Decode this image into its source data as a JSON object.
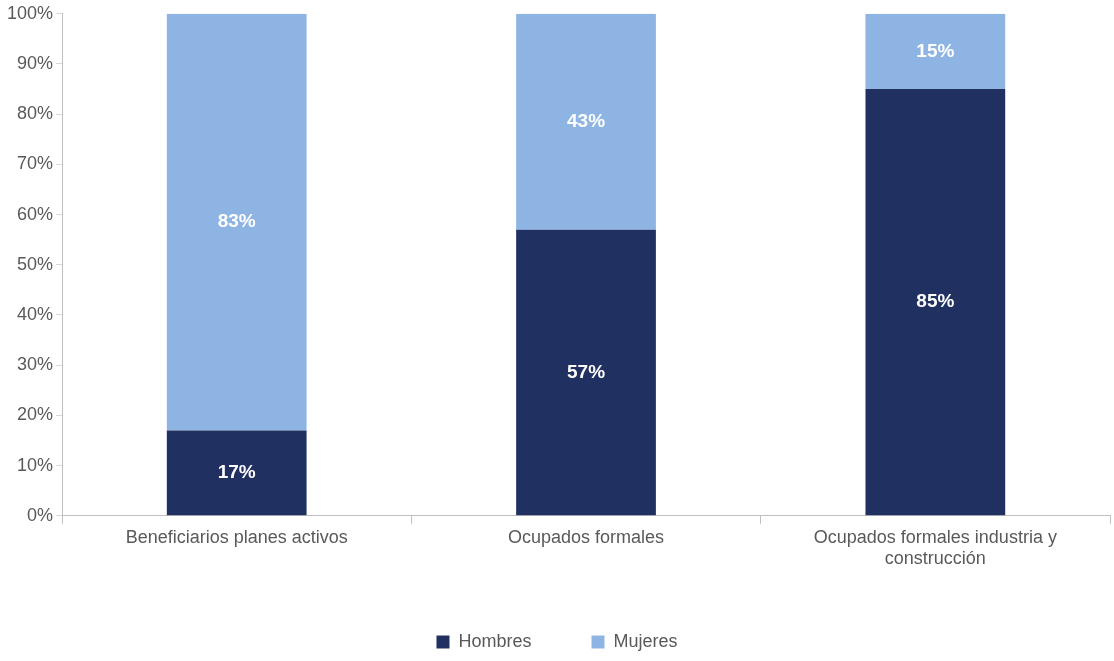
{
  "chart_data": {
    "type": "bar",
    "stacked": true,
    "categories": [
      "Beneficiarios planes activos",
      "Ocupados formales",
      "Ocupados formales industria y construcción"
    ],
    "series": [
      {
        "name": "Hombres",
        "color": "#1f3061",
        "values": [
          17,
          57,
          85
        ],
        "value_labels": [
          "17%",
          "57%",
          "85%"
        ]
      },
      {
        "name": "Mujeres",
        "color": "#8eb4e3",
        "values": [
          83,
          43,
          15
        ],
        "value_labels": [
          "83%",
          "43%",
          "15%"
        ]
      }
    ],
    "ylim": [
      0,
      100
    ],
    "yticks": [
      {
        "value": 0,
        "label": "0%"
      },
      {
        "value": 10,
        "label": "10%"
      },
      {
        "value": 20,
        "label": "20%"
      },
      {
        "value": 30,
        "label": "30%"
      },
      {
        "value": 40,
        "label": "40%"
      },
      {
        "value": 50,
        "label": "50%"
      },
      {
        "value": 60,
        "label": "60%"
      },
      {
        "value": 70,
        "label": "70%"
      },
      {
        "value": 80,
        "label": "80%"
      },
      {
        "value": 90,
        "label": "90%"
      },
      {
        "value": 100,
        "label": "100%"
      }
    ],
    "grid": false,
    "legend": "bottom"
  }
}
